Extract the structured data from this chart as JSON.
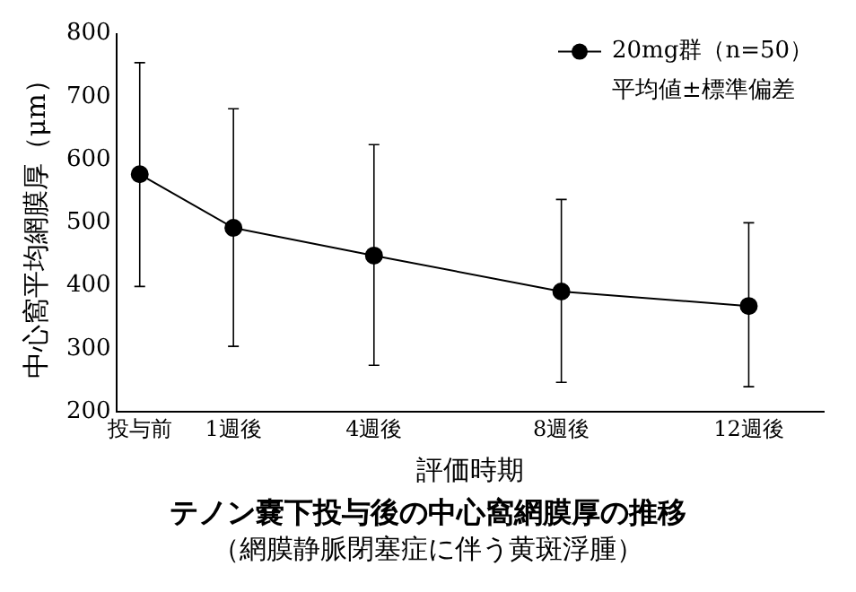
{
  "chart_data": {
    "type": "line",
    "title": "テノン嚢下投与後の中心窩網膜厚の推移",
    "subtitle": "（網膜静脈閉塞症に伴う黄斑浮腫）",
    "xlabel": "評価時期",
    "ylabel": "中心窩平均網膜厚（μm）",
    "x": [
      -1,
      1,
      4,
      8,
      12
    ],
    "series": [
      {
        "name": "20mg群（n=50）",
        "color": "#000000",
        "values": [
          577,
          492,
          448,
          391,
          368
        ],
        "errors": [
          [
            399,
            754
          ],
          [
            304,
            681
          ],
          [
            274,
            624
          ],
          [
            247,
            537
          ],
          [
            240,
            500
          ]
        ]
      }
    ],
    "xlim": [
      -1.5,
      13.6
    ],
    "xticks": [
      {
        "value": -1,
        "label": "投与前"
      },
      {
        "value": 1,
        "label": "1週後"
      },
      {
        "value": 4,
        "label": "4週後"
      },
      {
        "value": 8,
        "label": "8週後"
      },
      {
        "value": 12,
        "label": "12週後"
      }
    ],
    "ylim": [
      200,
      800
    ],
    "yticks": [
      200,
      300,
      400,
      500,
      600,
      700,
      800
    ],
    "annotations": [
      "平均値±標準偏差"
    ],
    "legend": "top right",
    "marker": "circle",
    "line_style": "solid",
    "grid": false
  }
}
